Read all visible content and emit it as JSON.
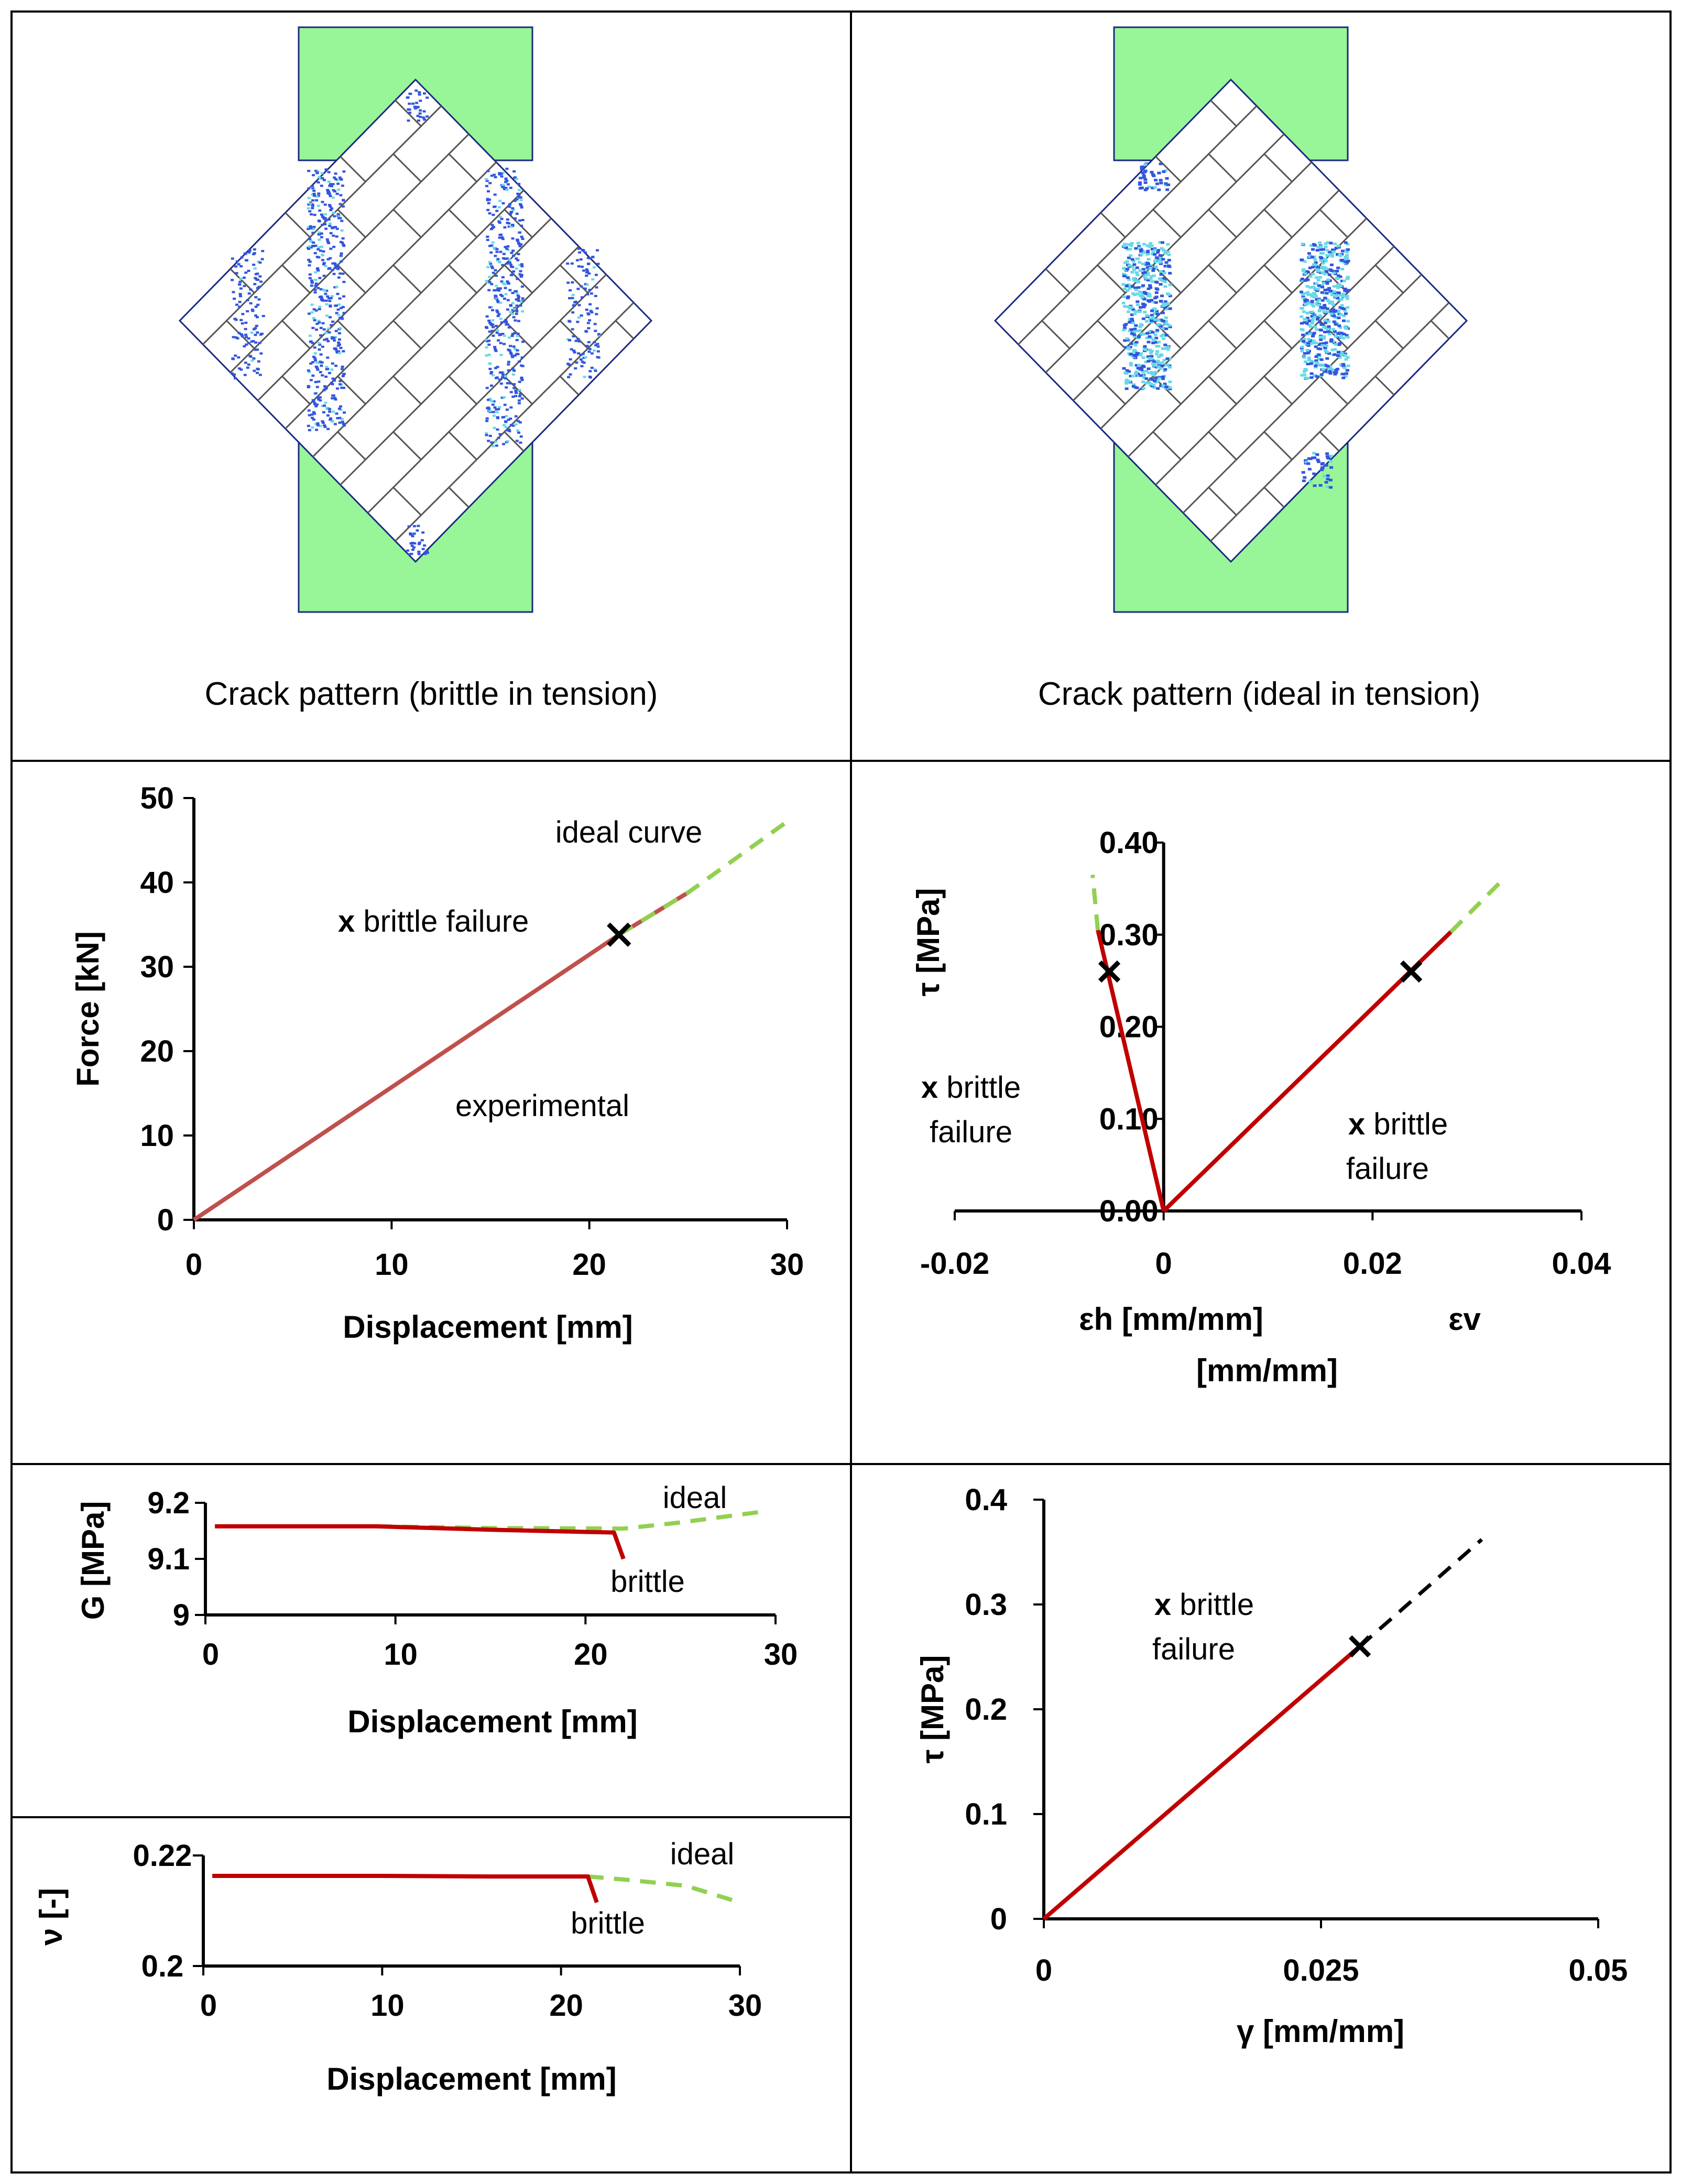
{
  "captions": {
    "left": "Crack pattern (brittle in tension)",
    "right": "Crack pattern (ideal in tension)"
  },
  "colors": {
    "experimental": "#c00000",
    "ideal": "#92d050",
    "support": "#98f598",
    "crack": "#3355dd",
    "crack_cyan": "#66d9e8"
  },
  "chart_data": [
    {
      "id": "force-displacement",
      "type": "line",
      "xlabel": "Displacement [mm]",
      "ylabel": "Force [kN]",
      "xlim": [
        0,
        30
      ],
      "ylim": [
        0,
        50
      ],
      "xticks": [
        "0",
        "10",
        "20",
        "30"
      ],
      "yticks": [
        "0",
        "10",
        "20",
        "30",
        "40",
        "50"
      ],
      "annotations": {
        "ideal": "ideal curve",
        "brittle_x": "x",
        "brittle": " brittle failure",
        "experimental": "experimental"
      },
      "series": [
        {
          "name": "experimental",
          "x": [
            0,
            21.5,
            25
          ],
          "y": [
            0,
            33.8,
            38.8
          ]
        },
        {
          "name": "ideal",
          "x": [
            21.5,
            25,
            30
          ],
          "y": [
            33.8,
            38.8,
            47.2
          ]
        }
      ],
      "failure_point": {
        "x": 21.5,
        "y": 33.8
      }
    },
    {
      "id": "tau-strain",
      "type": "line",
      "xlabel_h": "εh [mm/mm]",
      "xlabel_v": "εv",
      "xlabel_unit": "[mm/mm]",
      "ylabel": "τ [MPa]",
      "xlim": [
        -0.02,
        0.04
      ],
      "ylim": [
        0,
        0.4
      ],
      "xticks": [
        "-0.02",
        "0",
        "0.02",
        "0.04"
      ],
      "yticks": [
        "0.00",
        "0.10",
        "0.20",
        "0.30",
        "0.40"
      ],
      "annotations": {
        "left_x": "x",
        "left_1": " brittle",
        "left_2": "failure",
        "right_x": "x",
        "right_1": " brittle",
        "right_2": "failure"
      },
      "series": [
        {
          "name": "experimental-h",
          "x": [
            0,
            -0.0063
          ],
          "y": [
            0,
            0.305
          ]
        },
        {
          "name": "ideal-h",
          "x": [
            -0.0063,
            -0.0068
          ],
          "y": [
            0.305,
            0.365
          ]
        },
        {
          "name": "experimental-v",
          "x": [
            0,
            0.0275
          ],
          "y": [
            0,
            0.303
          ]
        },
        {
          "name": "ideal-v",
          "x": [
            0.0275,
            0.0325
          ],
          "y": [
            0.303,
            0.36
          ]
        }
      ],
      "failure_points": [
        {
          "x": -0.0052,
          "y": 0.26
        },
        {
          "x": 0.0237,
          "y": 0.26
        }
      ]
    },
    {
      "id": "G-displacement",
      "type": "line",
      "xlabel": "Displacement [mm]",
      "ylabel": "G [MPa]",
      "xlim": [
        0,
        30
      ],
      "ylim": [
        9,
        9.2
      ],
      "xticks": [
        "0",
        "10",
        "20",
        "30"
      ],
      "yticks": [
        "9",
        "9.1",
        "9.2"
      ],
      "annotations": {
        "ideal": "ideal",
        "brittle": "brittle"
      },
      "series": [
        {
          "name": "experimental",
          "x": [
            0.5,
            9,
            15,
            21.5,
            22
          ],
          "y": [
            9.158,
            9.158,
            9.152,
            9.147,
            9.1
          ]
        },
        {
          "name": "ideal",
          "x": [
            9,
            15,
            22,
            25,
            29.5
          ],
          "y": [
            9.158,
            9.155,
            9.154,
            9.165,
            9.185
          ]
        }
      ]
    },
    {
      "id": "nu-displacement",
      "type": "line",
      "xlabel": "Displacement [mm]",
      "ylabel": "ν [-]",
      "xlim": [
        0,
        30
      ],
      "ylim": [
        0.2,
        0.22
      ],
      "xticks": [
        "0",
        "10",
        "20",
        "30"
      ],
      "yticks": [
        "0.2",
        "0.22"
      ],
      "annotations": {
        "ideal": "ideal",
        "brittle": "brittle"
      },
      "series": [
        {
          "name": "experimental",
          "x": [
            0.5,
            10,
            16,
            21.5,
            22
          ],
          "y": [
            0.2163,
            0.2163,
            0.2162,
            0.2162,
            0.2115
          ]
        },
        {
          "name": "ideal",
          "x": [
            21.5,
            24,
            27,
            30
          ],
          "y": [
            0.2162,
            0.2155,
            0.2145,
            0.2115
          ]
        }
      ]
    },
    {
      "id": "tau-gamma",
      "type": "line",
      "xlabel": "γ  [mm/mm]",
      "ylabel": "τ [MPa]",
      "xlim": [
        0,
        0.05
      ],
      "ylim": [
        0,
        0.4
      ],
      "xticks": [
        "0",
        "0.025",
        "0.05"
      ],
      "yticks": [
        "0",
        "0.1",
        "0.2",
        "0.3",
        "0.4"
      ],
      "annotations": {
        "brittle_x": "x",
        "brittle_1": " brittle",
        "brittle_2": "failure"
      },
      "series": [
        {
          "name": "experimental",
          "x": [
            0,
            0.0285
          ],
          "y": [
            0,
            0.26
          ]
        },
        {
          "name": "ideal",
          "x": [
            0.0285,
            0.0395
          ],
          "y": [
            0.26,
            0.362
          ]
        }
      ],
      "failure_point": {
        "x": 0.0285,
        "y": 0.26
      }
    }
  ]
}
